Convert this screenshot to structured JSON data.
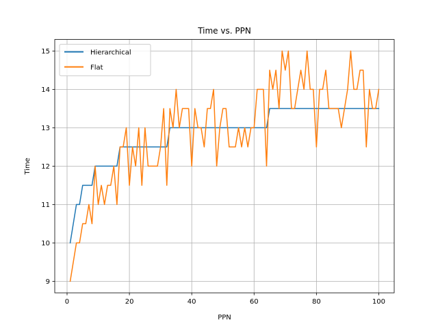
{
  "chart_data": {
    "type": "line",
    "title": "Time vs. PPN",
    "xlabel": "PPN",
    "ylabel": "Time",
    "xlim": [
      -3.95,
      104.95
    ],
    "ylim": [
      8.7,
      15.3
    ],
    "xticks": [
      0,
      20,
      40,
      60,
      80,
      100
    ],
    "yticks": [
      9,
      10,
      11,
      12,
      13,
      14,
      15
    ],
    "grid": true,
    "legend_position": "top-left",
    "series": [
      {
        "name": "Hierarchical",
        "color": "#1f77b4",
        "x": [
          1,
          2,
          3,
          4,
          5,
          6,
          7,
          8,
          9,
          10,
          11,
          12,
          13,
          14,
          15,
          16,
          17,
          18,
          19,
          20,
          21,
          22,
          23,
          24,
          25,
          26,
          27,
          28,
          29,
          30,
          31,
          32,
          33,
          34,
          35,
          36,
          37,
          38,
          39,
          40,
          41,
          42,
          43,
          44,
          45,
          46,
          47,
          48,
          49,
          50,
          51,
          52,
          53,
          54,
          55,
          56,
          57,
          58,
          59,
          60,
          61,
          62,
          63,
          64,
          65,
          66,
          67,
          68,
          69,
          70,
          71,
          72,
          73,
          74,
          75,
          76,
          77,
          78,
          79,
          80,
          81,
          82,
          83,
          84,
          85,
          86,
          87,
          88,
          89,
          90,
          91,
          92,
          93,
          94,
          95,
          96,
          97,
          98,
          99,
          100
        ],
        "y": [
          10,
          10.5,
          11,
          11,
          11.5,
          11.5,
          11.5,
          11.5,
          12,
          12,
          12,
          12,
          12,
          12,
          12,
          12,
          12.5,
          12.5,
          12.5,
          12.5,
          12.5,
          12.5,
          12.5,
          12.5,
          12.5,
          12.5,
          12.5,
          12.5,
          12.5,
          12.5,
          12.5,
          12.5,
          13,
          13,
          13,
          13,
          13,
          13,
          13,
          13,
          13,
          13,
          13,
          13,
          13,
          13,
          13,
          13,
          13,
          13,
          13,
          13,
          13,
          13,
          13,
          13,
          13,
          13,
          13,
          13,
          13,
          13,
          13,
          13,
          13.5,
          13.5,
          13.5,
          13.5,
          13.5,
          13.5,
          13.5,
          13.5,
          13.5,
          13.5,
          13.5,
          13.5,
          13.5,
          13.5,
          13.5,
          13.5,
          13.5,
          13.5,
          13.5,
          13.5,
          13.5,
          13.5,
          13.5,
          13.5,
          13.5,
          13.5,
          13.5,
          13.5,
          13.5,
          13.5,
          13.5,
          13.5,
          13.5,
          13.5,
          13.5,
          13.5
        ]
      },
      {
        "name": "Flat",
        "color": "#ff7f0e",
        "x": [
          1,
          2,
          3,
          4,
          5,
          6,
          7,
          8,
          9,
          10,
          11,
          12,
          13,
          14,
          15,
          16,
          17,
          18,
          19,
          20,
          21,
          22,
          23,
          24,
          25,
          26,
          27,
          28,
          29,
          30,
          31,
          32,
          33,
          34,
          35,
          36,
          37,
          38,
          39,
          40,
          41,
          42,
          43,
          44,
          45,
          46,
          47,
          48,
          49,
          50,
          51,
          52,
          53,
          54,
          55,
          56,
          57,
          58,
          59,
          60,
          61,
          62,
          63,
          64,
          65,
          66,
          67,
          68,
          69,
          70,
          71,
          72,
          73,
          74,
          75,
          76,
          77,
          78,
          79,
          80,
          81,
          82,
          83,
          84,
          85,
          86,
          87,
          88,
          89,
          90,
          91,
          92,
          93,
          94,
          95,
          96,
          97,
          98,
          99,
          100
        ],
        "y": [
          9,
          9.5,
          10,
          10,
          10.5,
          10.5,
          11,
          10.5,
          12,
          11,
          11.5,
          11,
          11.5,
          11.5,
          12,
          11,
          12.5,
          12.5,
          13,
          11.5,
          12.5,
          12,
          13,
          11.5,
          13,
          12,
          12,
          12,
          12,
          12.5,
          13.5,
          11.5,
          13.5,
          13,
          14,
          13,
          13.5,
          13.5,
          13.5,
          12,
          13.5,
          13,
          13,
          12.5,
          13.5,
          13.5,
          14,
          12,
          13,
          13.5,
          13.5,
          12.5,
          12.5,
          12.5,
          13,
          12.5,
          13,
          12.5,
          13,
          13,
          14,
          14,
          14,
          12,
          14.5,
          14,
          14.5,
          13.5,
          15,
          14.5,
          15,
          13.5,
          13.5,
          14,
          14.5,
          14,
          15,
          14,
          14,
          12.5,
          14,
          14,
          14.5,
          13.5,
          13.5,
          13.5,
          13.5,
          13,
          13.5,
          14,
          15,
          14,
          14,
          14.5,
          14.5,
          12.5,
          14,
          13.5,
          13.5,
          14
        ]
      }
    ]
  }
}
